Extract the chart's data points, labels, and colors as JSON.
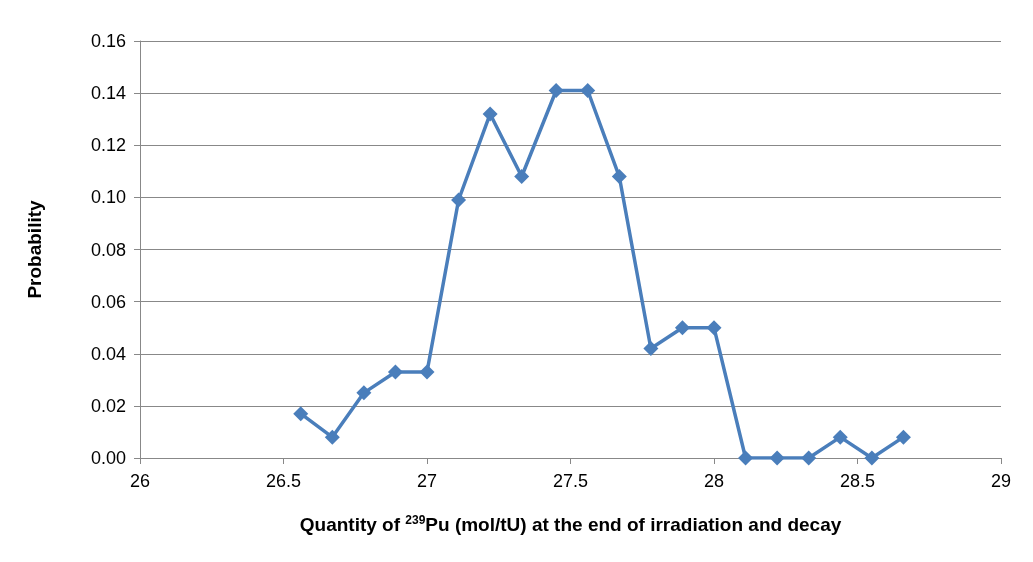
{
  "chart_data": {
    "type": "line",
    "xlabel": "Quantity of $^{239}$Pu (mol/tU) at the end of irradiation and decay",
    "ylabel": "Probability",
    "x": [
      26.56,
      26.67,
      26.78,
      26.89,
      27.0,
      27.11,
      27.22,
      27.33,
      27.45,
      27.56,
      27.67,
      27.78,
      27.89,
      28.0,
      28.11,
      28.22,
      28.33,
      28.44,
      28.55,
      28.66
    ],
    "series": [
      {
        "color": "#4a7ebb",
        "values": [
          0.017,
          0.008,
          0.025,
          0.033,
          0.033,
          0.099,
          0.132,
          0.108,
          0.141,
          0.141,
          0.108,
          0.042,
          0.05,
          0.05,
          0,
          0,
          0,
          0.008,
          0,
          0.008
        ]
      }
    ],
    "xlim": [
      26,
      29
    ],
    "xticks": [
      26,
      26.5,
      27,
      27.5,
      28,
      28.5,
      29
    ],
    "ylim": [
      0,
      0.16
    ],
    "yticks": [
      {
        "value": 0,
        "label": "0.00"
      },
      {
        "value": 0.02,
        "label": "0.02"
      },
      {
        "value": 0.04,
        "label": "0.04"
      },
      {
        "value": 0.06,
        "label": "0.06"
      },
      {
        "value": 0.08,
        "label": "0.08"
      },
      {
        "value": 0.1,
        "label": "0.10"
      },
      {
        "value": 0.12,
        "label": "0.12"
      },
      {
        "value": 0.14,
        "label": "0.14"
      },
      {
        "value": 0.16,
        "label": "0.16"
      }
    ],
    "grid": "y",
    "marker": "diamond",
    "line_style": "solid"
  }
}
